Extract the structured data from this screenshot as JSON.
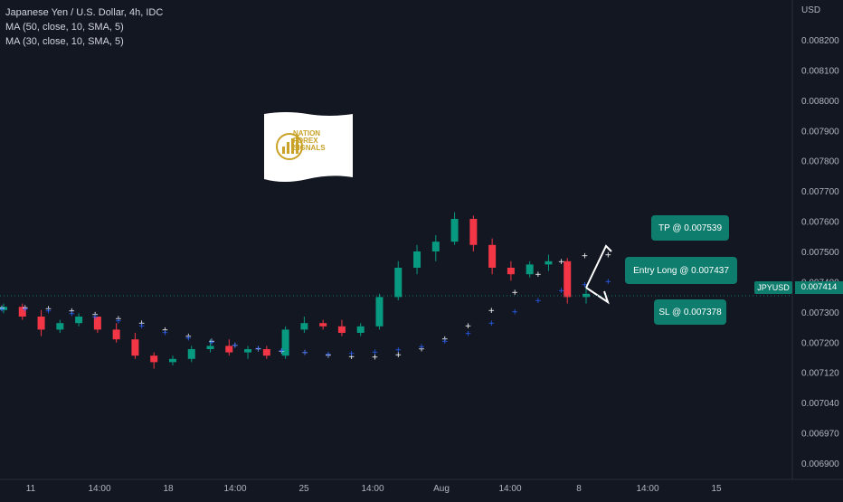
{
  "legend": {
    "title": "Japanese Yen / U.S. Dollar, 4h, IDC",
    "ma1": "MA (50, close, 10, SMA, 5)",
    "ma2": "MA (30, close, 10, SMA, 5)"
  },
  "currency": "USD",
  "symbol_tag": "JPYUSD",
  "current_price": "0.007414",
  "logo": {
    "line1": "NATION",
    "line2": "FOREX",
    "line3": "SIGNALS"
  },
  "callouts": {
    "tp": "TP @ 0.007539",
    "entry": "Entry Long @ 0.007437",
    "sl": "SL @ 0.007378"
  },
  "colors": {
    "background": "#131722",
    "up": "#089981",
    "down": "#f23645",
    "ma_fast": "#ffffff",
    "ma_slow": "#2962ff",
    "callout": "#0f7d6d"
  },
  "chart_data": {
    "type": "candlestick",
    "y_tick_labels": [
      "0.008200",
      "0.008100",
      "0.008000",
      "0.007900",
      "0.007800",
      "0.007700",
      "0.007600",
      "0.007500",
      "0.007400",
      "0.007300",
      "0.007200",
      "0.007120",
      "0.007040",
      "0.006970",
      "0.006900"
    ],
    "x_tick_labels": [
      "11",
      "14:00",
      "18",
      "14:00",
      "25",
      "14:00",
      "Aug",
      "14:00",
      "8",
      "14:00",
      "15"
    ],
    "series": [
      {
        "name": "MA (50, close, 10, SMA, 5)",
        "color": "#ffffff",
        "values": [
          0.007377,
          0.007378,
          0.007375,
          0.007368,
          0.007357,
          0.007344,
          0.00733,
          0.00731,
          0.00729,
          0.007275,
          0.007262,
          0.007252,
          0.007245,
          0.00724,
          0.007232,
          0.007228,
          0.007226,
          0.007234,
          0.007252,
          0.007282,
          0.007322,
          0.00737,
          0.007425,
          0.00748,
          0.00752,
          0.007538,
          0.00754,
          0.007525
        ]
      },
      {
        "name": "MA (30, close, 10, SMA, 5)",
        "color": "#2962ff",
        "values": [
          0.007374,
          0.007374,
          0.007368,
          0.00736,
          0.00735,
          0.007338,
          0.007322,
          0.007302,
          0.007285,
          0.007272,
          0.007262,
          0.007253,
          0.007246,
          0.00724,
          0.007235,
          0.007237,
          0.007242,
          0.007248,
          0.007258,
          0.007275,
          0.007298,
          0.00733,
          0.007365,
          0.0074,
          0.00743,
          0.007448,
          0.007458,
          0.00747
        ]
      }
    ],
    "candles": [
      [
        0.00737,
        0.00739,
        0.00736,
        0.00738
      ],
      [
        0.00738,
        0.00739,
        0.00734,
        0.00735
      ],
      [
        0.00735,
        0.00737,
        0.00729,
        0.00731
      ],
      [
        0.00731,
        0.00734,
        0.0073,
        0.00733
      ],
      [
        0.00733,
        0.00736,
        0.00732,
        0.00735
      ],
      [
        0.00735,
        0.00735,
        0.0073,
        0.00731
      ],
      [
        0.00731,
        0.00733,
        0.00727,
        0.00728
      ],
      [
        0.00728,
        0.0073,
        0.00722,
        0.00723
      ],
      [
        0.00723,
        0.00724,
        0.00719,
        0.00721
      ],
      [
        0.00721,
        0.00723,
        0.0072,
        0.00722
      ],
      [
        0.00722,
        0.00726,
        0.00721,
        0.00725
      ],
      [
        0.00725,
        0.00728,
        0.00724,
        0.00726
      ],
      [
        0.00726,
        0.00728,
        0.00723,
        0.00724
      ],
      [
        0.00724,
        0.00726,
        0.00722,
        0.00725
      ],
      [
        0.00725,
        0.00726,
        0.00722,
        0.00723
      ],
      [
        0.00723,
        0.00732,
        0.00722,
        0.00731
      ],
      [
        0.00731,
        0.00735,
        0.0073,
        0.00733
      ],
      [
        0.00733,
        0.00734,
        0.00731,
        0.00732
      ],
      [
        0.00732,
        0.00734,
        0.00729,
        0.0073
      ],
      [
        0.0073,
        0.00733,
        0.00729,
        0.00732
      ],
      [
        0.00732,
        0.00742,
        0.00731,
        0.00741
      ],
      [
        0.00741,
        0.00752,
        0.0074,
        0.0075
      ],
      [
        0.0075,
        0.00757,
        0.00748,
        0.00755
      ],
      [
        0.00755,
        0.0076,
        0.00752,
        0.00758
      ],
      [
        0.00758,
        0.00767,
        0.00757,
        0.00765
      ],
      [
        0.00765,
        0.00766,
        0.00755,
        0.00757
      ],
      [
        0.00757,
        0.00759,
        0.00748,
        0.0075
      ],
      [
        0.0075,
        0.00752,
        0.00746,
        0.00748
      ],
      [
        0.00748,
        0.00752,
        0.00747,
        0.00751
      ],
      [
        0.00751,
        0.00754,
        0.00749,
        0.00752
      ],
      [
        0.00752,
        0.00753,
        0.00739,
        0.00741
      ],
      [
        0.00741,
        0.00744,
        0.00739,
        0.00742
      ]
    ]
  }
}
